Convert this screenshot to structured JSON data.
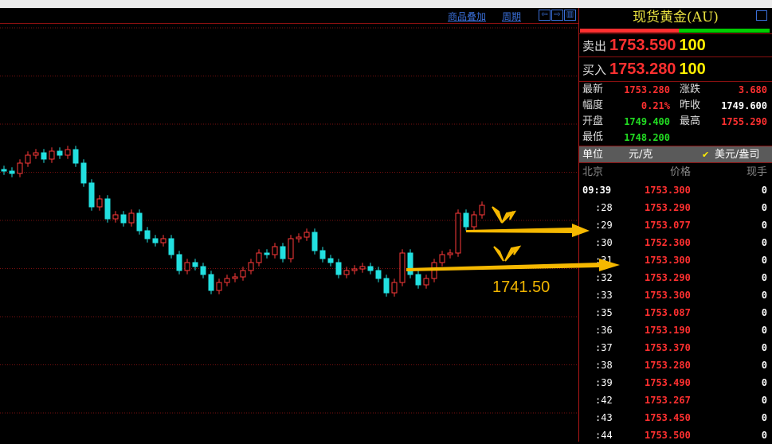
{
  "toolbar": {
    "overlay_label": "商品叠加",
    "period_label": "周期",
    "btn_left": "⇦",
    "btn_right": "⇨",
    "btn_panel": "▥"
  },
  "panel": {
    "title": "现货黄金(AU)",
    "ratio": {
      "sell_pct": 0.52,
      "sell_color": "#ff3030",
      "buy_color": "#00cc00"
    },
    "sell": {
      "label": "卖出",
      "price": "1753.590",
      "volume": "100"
    },
    "buy": {
      "label": "买入",
      "price": "1753.280",
      "volume": "100"
    },
    "stats": [
      {
        "l1": "最新",
        "v1": "1753.280",
        "c1": "#ff3030",
        "l2": "涨跌",
        "v2": "3.680",
        "c2": "#ff3030"
      },
      {
        "l1": "幅度",
        "v1": "0.21%",
        "c1": "#ff3030",
        "l2": "昨收",
        "v2": "1749.600",
        "c2": "#ffffff"
      },
      {
        "l1": "开盘",
        "v1": "1749.400",
        "c1": "#22dd22",
        "l2": "最高",
        "v2": "1755.290",
        "c2": "#ff3030"
      },
      {
        "l1": "最低",
        "v1": "1748.200",
        "c1": "#22dd22",
        "l2": "",
        "v2": "",
        "c2": "#ffffff"
      }
    ],
    "unit": {
      "label": "单位",
      "opt1": "元/克",
      "check": "✔",
      "opt2": "美元/盎司"
    },
    "table_header": {
      "time": "北京",
      "price": "价格",
      "qty": "现手"
    },
    "ticks": [
      {
        "time": "09:39",
        "price": "1753.300",
        "qty": "0"
      },
      {
        "time": ":28",
        "price": "1753.290",
        "qty": "0"
      },
      {
        "time": ":29",
        "price": "1753.077",
        "qty": "0"
      },
      {
        "time": ":30",
        "price": "1752.300",
        "qty": "0"
      },
      {
        "time": ":31",
        "price": "1753.300",
        "qty": "0"
      },
      {
        "time": ":32",
        "price": "1753.290",
        "qty": "0"
      },
      {
        "time": ":33",
        "price": "1753.300",
        "qty": "0"
      },
      {
        "time": ":35",
        "price": "1753.087",
        "qty": "0"
      },
      {
        "time": ":36",
        "price": "1753.190",
        "qty": "0"
      },
      {
        "time": ":37",
        "price": "1753.370",
        "qty": "0"
      },
      {
        "time": ":38",
        "price": "1753.280",
        "qty": "0"
      },
      {
        "time": ":39",
        "price": "1753.490",
        "qty": "0"
      },
      {
        "time": ":42",
        "price": "1753.267",
        "qty": "0"
      },
      {
        "time": ":43",
        "price": "1753.450",
        "qty": "0"
      },
      {
        "time": ":44",
        "price": "1753.500",
        "qty": "0"
      }
    ]
  },
  "annotation": {
    "level_label": "1741.50",
    "color": "#f0b400"
  },
  "chart_data": {
    "type": "candlestick",
    "up_color": "#ff3a3a",
    "down_color": "#22e0e0",
    "grid": "dotted horizontal",
    "closes": [
      1759.58,
      1759.14,
      1761.05,
      1762.52,
      1762.96,
      1761.79,
      1763.26,
      1762.52,
      1763.55,
      1761.05,
      1757.38,
      1752.97,
      1754.44,
      1750.76,
      1751.5,
      1750.03,
      1751.79,
      1748.56,
      1747.09,
      1746.35,
      1747.09,
      1744.15,
      1741.21,
      1742.68,
      1741.94,
      1740.47,
      1737.53,
      1739.0,
      1739.74,
      1740.03,
      1741.21,
      1742.68,
      1744.44,
      1744.15,
      1745.62,
      1743.41,
      1747.09,
      1747.38,
      1748.26,
      1744.88,
      1743.41,
      1742.68,
      1740.47,
      1741.21,
      1741.5,
      1741.94,
      1741.21,
      1739.74,
      1737.09,
      1739.0,
      1744.44,
      1740.47,
      1738.56,
      1739.74,
      1742.68,
      1744.15,
      1744.44,
      1751.79,
      1749.29,
      1751.5,
      1753.26
    ]
  }
}
